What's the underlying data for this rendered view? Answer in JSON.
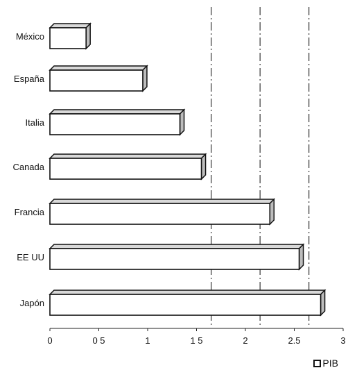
{
  "chart_data": {
    "type": "bar",
    "orientation": "horizontal",
    "categories": [
      "México",
      "España",
      "Italia",
      "Canada",
      "Francia",
      "EE UU",
      "Japón"
    ],
    "series": [
      {
        "name": "PIB",
        "values": [
          0.37,
          0.95,
          1.33,
          1.55,
          2.25,
          2.55,
          2.77
        ]
      }
    ],
    "xlim": [
      0,
      3
    ],
    "xticks": [
      0,
      0.5,
      1,
      1.5,
      2,
      2.5,
      3
    ],
    "xtick_labels": [
      "0",
      "0 5",
      "1",
      "1 5",
      "2",
      "2.5",
      "3"
    ],
    "reference_lines": [
      1.65,
      2.15,
      2.65
    ],
    "legend": {
      "position": "bottom-right",
      "entries": [
        "PIB"
      ]
    },
    "title": "",
    "xlabel": "",
    "ylabel": "",
    "colors": {
      "bar_fill": "#ffffff",
      "bar_stroke": "#111111",
      "top_face": "#d9d9d9",
      "side_face": "#bdbdbd"
    }
  }
}
